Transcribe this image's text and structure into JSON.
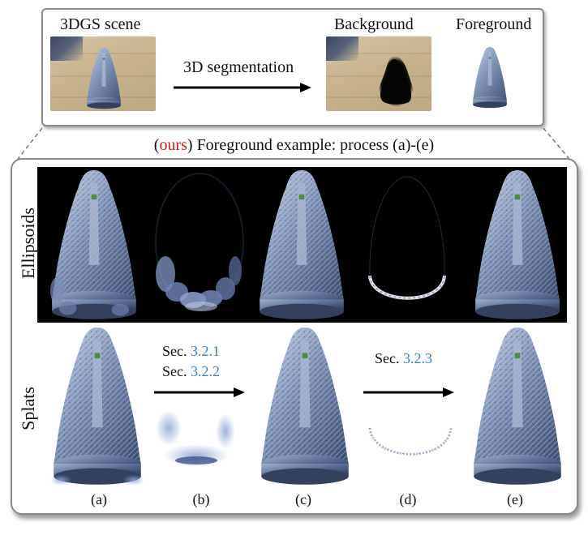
{
  "top_panel": {
    "scene_label": "3DGS scene",
    "arrow_label": "3D segmentation",
    "background_label": "Background",
    "foreground_label": "Foreground"
  },
  "caption": {
    "ours": "ours",
    "rest": "Foreground example: process (a)-(e)"
  },
  "rows": {
    "ellipsoids_label": "Ellipsoids",
    "splats_label": "Splats"
  },
  "sections": {
    "sec_prefix_1": "Sec.",
    "sec_ref_1": "3.2.1",
    "sec_prefix_2": "Sec.",
    "sec_ref_2": "3.2.2",
    "sec_prefix_3": "Sec.",
    "sec_ref_3": "3.2.3"
  },
  "steps": [
    "(a)",
    "(b)",
    "(c)",
    "(d)",
    "(e)"
  ],
  "colors": {
    "ours_red": "#d11a1a",
    "ref_blue": "#3d7fc2",
    "frame_gray": "#8a8a8a"
  }
}
